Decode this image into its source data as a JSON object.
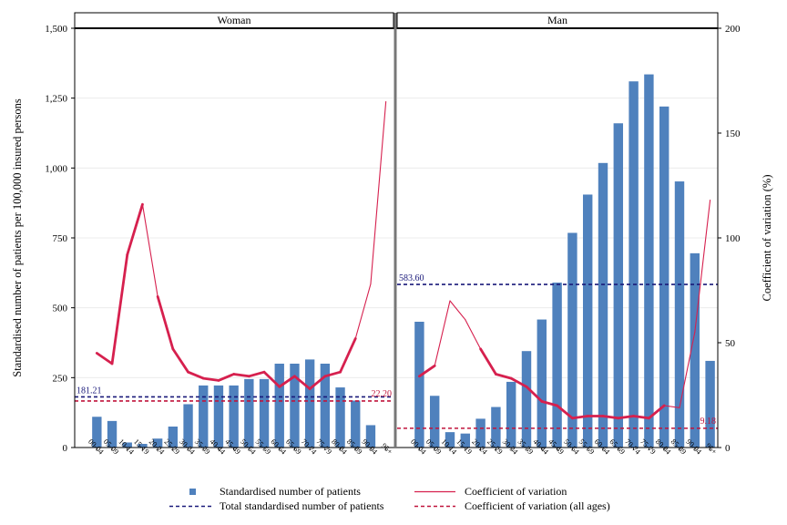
{
  "chart_data": {
    "type": "bar",
    "categories": [
      "00-04",
      "05-09",
      "10-14",
      "15-19",
      "20-24",
      "25-29",
      "30-34",
      "35-39",
      "40-44",
      "45-49",
      "50-54",
      "55-59",
      "60-64",
      "65-69",
      "70-74",
      "75-79",
      "80-84",
      "85-89",
      "90-94",
      "95+"
    ],
    "y_left_label": "Standardised number of patients per 100,000 insured persons",
    "y_right_label": "Coefficient of variation (%)",
    "y_left_lim": [
      0,
      1500
    ],
    "y_right_lim": [
      0,
      200
    ],
    "y_left_ticks": [
      0,
      250,
      500,
      750,
      1000,
      1250,
      1500
    ],
    "y_left_tick_labels": [
      "0",
      "250",
      "500",
      "750",
      "1,000",
      "1,250",
      "1,500"
    ],
    "y_right_ticks": [
      0,
      50,
      100,
      150,
      200
    ],
    "y_right_tick_labels": [
      "0",
      "50",
      "100",
      "150",
      "200"
    ],
    "grid": true,
    "legend_position": "bottom",
    "colors": {
      "bar": "#4f81bd",
      "cv": "#d6204e",
      "total": "#1a1a7a",
      "cv_all": "#c0143c"
    },
    "legend": {
      "bars": "Standardised number of patients",
      "cv": "Coefficient of variation",
      "total": "Total standardised number of patients",
      "cv_all": "Coefficient of variation (all ages)"
    },
    "panels": [
      {
        "name": "Woman",
        "bars": [
          110,
          95,
          18,
          13,
          32,
          75,
          155,
          222,
          222,
          222,
          245,
          245,
          300,
          300,
          315,
          300,
          215,
          168,
          80,
          0
        ],
        "cv": [
          45,
          40,
          92,
          116,
          72,
          47,
          36,
          33,
          32,
          35,
          34,
          36,
          29,
          34,
          28,
          34,
          36,
          52,
          78,
          165
        ],
        "cv_thick": [
          true,
          true,
          true,
          false,
          true,
          true,
          true,
          true,
          true,
          true,
          true,
          true,
          true,
          true,
          true,
          true,
          true,
          false,
          false
        ],
        "total": 181.21,
        "total_label": "181.21",
        "cv_all": 22.2,
        "cv_all_label": "22.20"
      },
      {
        "name": "Man",
        "bars": [
          450,
          185,
          55,
          50,
          103,
          145,
          235,
          345,
          458,
          590,
          768,
          905,
          1018,
          1160,
          1310,
          1335,
          1220,
          952,
          695,
          310
        ],
        "cv": [
          34,
          39,
          70,
          61,
          47,
          35,
          33,
          29,
          22,
          20,
          14,
          15,
          15,
          14,
          15,
          14,
          20,
          19,
          55,
          118
        ],
        "cv_thick": [
          true,
          false,
          false,
          false,
          true,
          true,
          true,
          true,
          true,
          true,
          true,
          true,
          true,
          true,
          true,
          true,
          false,
          false,
          false
        ],
        "total": 583.6,
        "total_label": "583.60",
        "cv_all": 9.18,
        "cv_all_label": "9.18"
      }
    ]
  }
}
